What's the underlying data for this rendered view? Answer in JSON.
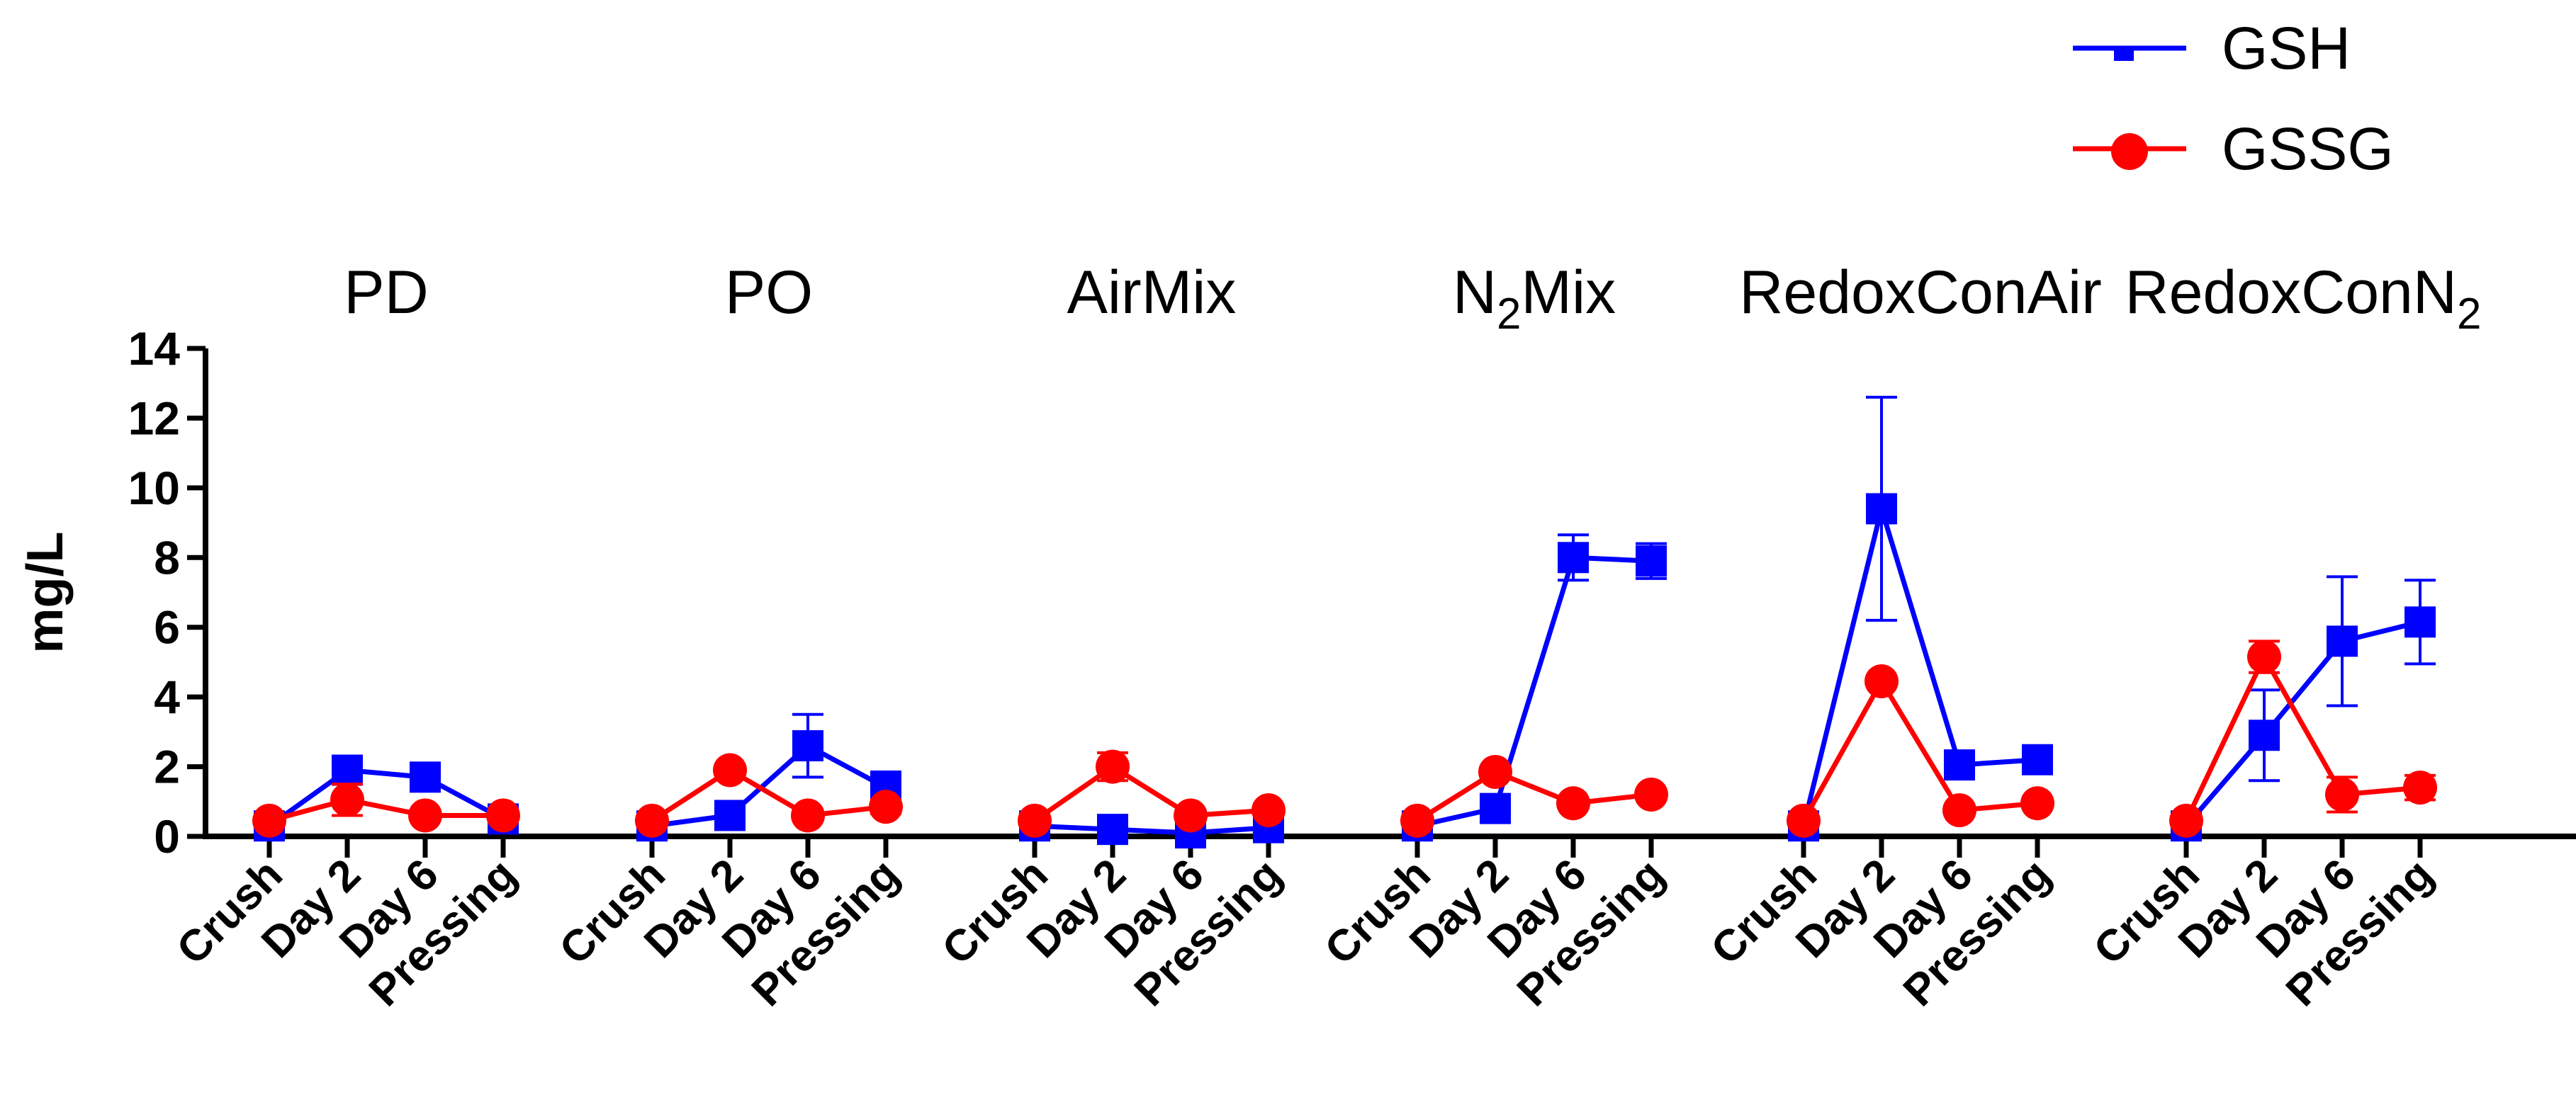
{
  "chart_data": {
    "type": "line",
    "ylabel": "mg/L",
    "ylim": [
      0,
      14
    ],
    "yticks": [
      0,
      2,
      4,
      6,
      8,
      10,
      12,
      14
    ],
    "categories": [
      "Crush",
      "Day 2",
      "Day 6",
      "Pressing"
    ],
    "groups": [
      {
        "title": "PD",
        "base": "PD",
        "sub": ""
      },
      {
        "title": "PO",
        "base": "PO",
        "sub": ""
      },
      {
        "title": "AirMix",
        "base": "AirMix",
        "sub": ""
      },
      {
        "title": "N2Mix",
        "base": "N",
        "sub": "2",
        "rest": "Mix"
      },
      {
        "title": "RedoxConAir",
        "base": "RedoxConAir",
        "sub": ""
      },
      {
        "title": "RedoxConN2",
        "base": "RedoxConN",
        "sub": "2",
        "rest": ""
      }
    ],
    "legend": {
      "position": "top-right"
    },
    "series": [
      {
        "name": "GSH",
        "color": "#0000ff",
        "marker": "square",
        "values": [
          [
            0.3,
            1.9,
            1.7,
            0.5
          ],
          [
            0.3,
            0.6,
            2.6,
            1.4
          ],
          [
            0.3,
            0.2,
            0.1,
            0.25
          ],
          [
            0.3,
            0.8,
            8.0,
            7.9
          ],
          [
            0.3,
            9.4,
            2.05,
            2.2
          ],
          [
            0.3,
            2.9,
            5.6,
            6.15
          ]
        ],
        "errors": [
          [
            0.1,
            0.2,
            0.15,
            0.1
          ],
          [
            0.1,
            0.1,
            0.9,
            0.45
          ],
          [
            0.05,
            0.1,
            0.05,
            0.1
          ],
          [
            0.05,
            0.15,
            0.65,
            0.5
          ],
          [
            0.1,
            3.2,
            0.2,
            0.25
          ],
          [
            0.05,
            1.3,
            1.85,
            1.2
          ]
        ]
      },
      {
        "name": "GSSG",
        "color": "#ff0000",
        "marker": "circle",
        "values": [
          [
            0.45,
            1.05,
            0.6,
            0.6
          ],
          [
            0.45,
            1.9,
            0.6,
            0.85
          ],
          [
            0.45,
            2.0,
            0.6,
            0.75
          ],
          [
            0.45,
            1.85,
            0.95,
            1.2
          ],
          [
            0.45,
            4.45,
            0.75,
            0.95
          ],
          [
            0.45,
            5.15,
            1.2,
            1.4
          ]
        ],
        "errors": [
          [
            0.05,
            0.45,
            0.1,
            0.15
          ],
          [
            0.05,
            0.1,
            0.1,
            0.2
          ],
          [
            0.05,
            0.4,
            0.1,
            0.15
          ],
          [
            0.05,
            0.1,
            0.15,
            0.15
          ],
          [
            0.05,
            0.15,
            0.1,
            0.15
          ],
          [
            0.05,
            0.45,
            0.5,
            0.35
          ]
        ]
      }
    ]
  }
}
